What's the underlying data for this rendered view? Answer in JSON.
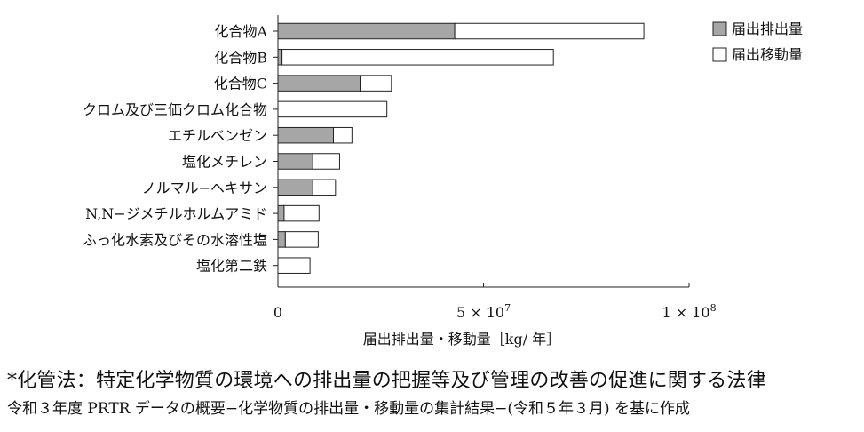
{
  "chart_data": {
    "type": "bar",
    "stacked": true,
    "orientation": "horizontal",
    "categories": [
      "化合物A",
      "化合物B",
      "化合物C",
      "クロム及び三価クロム化合物",
      "エチルベンゼン",
      "塩化メチレン",
      "ノルマル−ヘキサン",
      "N,N−ジメチルホルムアミド",
      "ふっ化水素及びその水溶性塩",
      "塩化第二鉄"
    ],
    "series": [
      {
        "name": "届出排出量",
        "color": "#a6a6a6",
        "values": [
          43000000,
          1000000,
          20000000,
          0,
          13500000,
          8500000,
          8500000,
          1500000,
          1800000,
          0
        ]
      },
      {
        "name": "届出移動量",
        "color": "#ffffff",
        "values": [
          46000000,
          66000000,
          7600000,
          26500000,
          4500000,
          6500000,
          5500000,
          8500000,
          8000000,
          7800000
        ]
      }
    ],
    "xlim": [
      0,
      100000000
    ],
    "xticks": [
      {
        "value": 0,
        "label": "0",
        "exp": ""
      },
      {
        "value": 50000000,
        "label": "5 × 10",
        "exp": "7"
      },
      {
        "value": 100000000,
        "label": "1 × 10",
        "exp": "8"
      }
    ],
    "xlabel": "届出排出量・移動量［kg/ 年］",
    "legend_position": "top-right"
  },
  "notes": {
    "line1": "*化管法：特定化学物質の環境への排出量の把握等及び管理の改善の促進に関する法律",
    "line2": "令和３年度 PRTR データの概要−化学物質の排出量・移動量の集計結果−(令和５年３月) を基に作成"
  }
}
